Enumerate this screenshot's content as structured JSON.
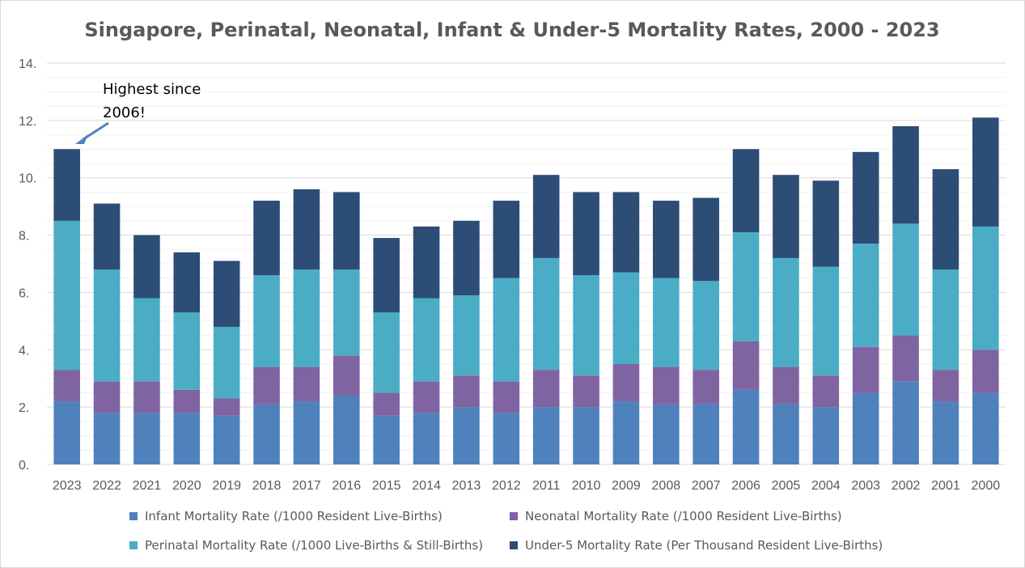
{
  "chart_data": {
    "type": "bar",
    "stacked": true,
    "title": "Singapore, Perinatal, Neonatal, Infant & Under-5 Mortality Rates, 2000 - 2023",
    "xlabel": "",
    "ylabel": "",
    "ylim": [
      0,
      14
    ],
    "yticks": [
      "0.",
      "2.",
      "4.",
      "6.",
      "8.",
      "10.",
      "12.",
      "14."
    ],
    "grid": true,
    "legend_position": "bottom",
    "categories": [
      "2023",
      "2022",
      "2021",
      "2020",
      "2019",
      "2018",
      "2017",
      "2016",
      "2015",
      "2014",
      "2013",
      "2012",
      "2011",
      "2010",
      "2009",
      "2008",
      "2007",
      "2006",
      "2005",
      "2004",
      "2003",
      "2002",
      "2001",
      "2000"
    ],
    "series": [
      {
        "name": "Infant Mortality Rate (/1000 Resident Live-Births)",
        "color": "#4f81bd",
        "values": [
          2.2,
          1.8,
          1.8,
          1.8,
          1.7,
          2.1,
          2.2,
          2.4,
          1.7,
          1.8,
          2.0,
          1.8,
          2.0,
          2.0,
          2.2,
          2.1,
          2.1,
          2.6,
          2.1,
          2.0,
          2.5,
          2.9,
          2.2,
          2.5
        ]
      },
      {
        "name": "Neonatal Mortality Rate (/1000 Resident Live-Births)",
        "color": "#8064a2",
        "values": [
          1.1,
          1.1,
          1.1,
          0.8,
          0.6,
          1.3,
          1.2,
          1.4,
          0.8,
          1.1,
          1.1,
          1.1,
          1.3,
          1.1,
          1.3,
          1.3,
          1.2,
          1.7,
          1.3,
          1.1,
          1.6,
          1.6,
          1.1,
          1.5
        ]
      },
      {
        "name": "Perinatal Mortality Rate (/1000 Live-Births & Still-Births)",
        "color": "#4bacc6",
        "values": [
          5.2,
          3.9,
          2.9,
          2.7,
          2.5,
          3.2,
          3.4,
          3.0,
          2.8,
          2.9,
          2.8,
          3.6,
          3.9,
          3.5,
          3.2,
          3.1,
          3.1,
          3.8,
          3.8,
          3.8,
          3.6,
          3.9,
          3.5,
          4.3
        ]
      },
      {
        "name": "Under-5 Mortality Rate (Per Thousand Resident Live-Births)",
        "color": "#2c4d75",
        "values": [
          2.5,
          2.3,
          2.2,
          2.1,
          2.3,
          2.6,
          2.8,
          2.7,
          2.6,
          2.5,
          2.6,
          2.7,
          2.9,
          2.9,
          2.8,
          2.7,
          2.9,
          2.9,
          2.9,
          3.0,
          3.2,
          3.4,
          3.5,
          3.8
        ]
      }
    ],
    "annotation": {
      "lines": [
        "Highest since",
        "2006!"
      ],
      "target_category": "2023"
    }
  }
}
